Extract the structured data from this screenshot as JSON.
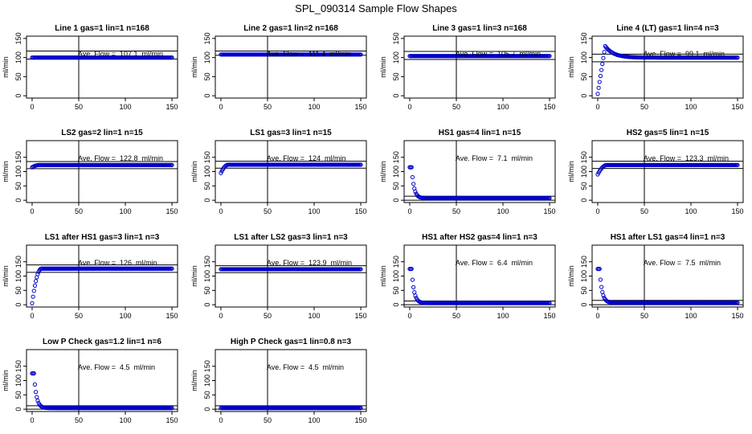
{
  "page": {
    "title": "SPL_090314  Sample Flow Shapes",
    "marker_color": "#0000cc",
    "axis_color": "#000000"
  },
  "chart_data": [
    {
      "type": "scatter",
      "title": "Line 1 gas=1 lin=1 n=168",
      "ylabel": "ml/min",
      "annotation": "Ave. Flow =  107.1  ml/min",
      "xlim": [
        0,
        150
      ],
      "ylim": [
        0,
        150
      ],
      "xticks": [
        0,
        50,
        100,
        150
      ],
      "yticks": [
        0,
        50,
        100,
        150
      ],
      "vline": 50,
      "hlines": [
        96,
        117
      ],
      "curve": {
        "kind": "flat",
        "start": 100,
        "peak": 100,
        "steady": 100,
        "x_peak": 3
      }
    },
    {
      "type": "scatter",
      "title": "Line 2 gas=1 lin=2 n=168",
      "ylabel": "ml/min",
      "annotation": "Ave. Flow =  111.4  ml/min",
      "xlim": [
        0,
        150
      ],
      "ylim": [
        0,
        150
      ],
      "xticks": [
        0,
        50,
        100,
        150
      ],
      "yticks": [
        0,
        50,
        100,
        150
      ],
      "vline": 50,
      "hlines": [
        106,
        117
      ],
      "curve": {
        "kind": "flat",
        "start": 108,
        "peak": 108,
        "steady": 108,
        "x_peak": 3
      }
    },
    {
      "type": "scatter",
      "title": "Line 3 gas=1 lin=3 n=168",
      "ylabel": "ml/min",
      "annotation": "Ave. Flow =  105.7  ml/min",
      "xlim": [
        0,
        150
      ],
      "ylim": [
        0,
        150
      ],
      "xticks": [
        0,
        50,
        100,
        150
      ],
      "yticks": [
        0,
        50,
        100,
        150
      ],
      "vline": 50,
      "hlines": [
        95,
        116
      ],
      "curve": {
        "kind": "flat",
        "start": 104,
        "peak": 104,
        "steady": 104,
        "x_peak": 3
      }
    },
    {
      "type": "scatter",
      "title": "Line 4 (LT) gas=1 lin=4 n=3",
      "ylabel": "ml/min",
      "annotation": "Ave. Flow =  99.1  ml/min",
      "xlim": [
        0,
        150
      ],
      "ylim": [
        0,
        150
      ],
      "xticks": [
        0,
        50,
        100,
        150
      ],
      "yticks": [
        0,
        50,
        100,
        150
      ],
      "vline": 50,
      "hlines": [
        89,
        109
      ],
      "curve": {
        "kind": "rise-overshoot",
        "start": 5,
        "peak": 130,
        "steady": 100,
        "x_peak": 8
      }
    },
    {
      "type": "scatter",
      "title": "LS2 gas=2 lin=1 n=15",
      "ylabel": "ml/min",
      "annotation": "Ave. Flow =  122.8  ml/min",
      "xlim": [
        0,
        150
      ],
      "ylim": [
        0,
        200
      ],
      "xticks": [
        0,
        50,
        100,
        150
      ],
      "yticks": [
        0,
        50,
        100,
        150
      ],
      "vline": 50,
      "hlines": [
        110,
        135
      ],
      "curve": {
        "kind": "rise",
        "start": 115,
        "peak": 123,
        "steady": 123,
        "x_peak": 8
      }
    },
    {
      "type": "scatter",
      "title": "LS1 gas=3 lin=1 n=15",
      "ylabel": "ml/min",
      "annotation": "Ave. Flow =  124  ml/min",
      "xlim": [
        0,
        150
      ],
      "ylim": [
        0,
        200
      ],
      "xticks": [
        0,
        50,
        100,
        150
      ],
      "yticks": [
        0,
        50,
        100,
        150
      ],
      "vline": 50,
      "hlines": [
        112,
        136
      ],
      "curve": {
        "kind": "rise",
        "start": 95,
        "peak": 124,
        "steady": 124,
        "x_peak": 8
      }
    },
    {
      "type": "scatter",
      "title": "HS1 gas=4 lin=1 n=15",
      "ylabel": "ml/min",
      "annotation": "Ave. Flow =  7.1  ml/min",
      "xlim": [
        0,
        150
      ],
      "ylim": [
        0,
        200
      ],
      "xticks": [
        0,
        50,
        100,
        150
      ],
      "yticks": [
        0,
        50,
        100,
        150
      ],
      "vline": 50,
      "hlines": [
        0,
        14
      ],
      "curve": {
        "kind": "decay",
        "start": 115,
        "peak": 115,
        "steady": 7,
        "x_peak": 2
      }
    },
    {
      "type": "scatter",
      "title": "HS2 gas=5 lin=1 n=15",
      "ylabel": "ml/min",
      "annotation": "Ave. Flow =  123.3  ml/min",
      "xlim": [
        0,
        150
      ],
      "ylim": [
        0,
        200
      ],
      "xticks": [
        0,
        50,
        100,
        150
      ],
      "yticks": [
        0,
        50,
        100,
        150
      ],
      "vline": 50,
      "hlines": [
        111,
        136
      ],
      "curve": {
        "kind": "rise",
        "start": 90,
        "peak": 123,
        "steady": 123,
        "x_peak": 10
      }
    },
    {
      "type": "scatter",
      "title": "LS1 after HS1 gas=3 lin=1 n=3",
      "ylabel": "ml/min",
      "annotation": "Ave. Flow =  126  ml/min",
      "xlim": [
        0,
        150
      ],
      "ylim": [
        0,
        200
      ],
      "xticks": [
        0,
        50,
        100,
        150
      ],
      "yticks": [
        0,
        50,
        100,
        150
      ],
      "vline": 50,
      "hlines": [
        113,
        139
      ],
      "curve": {
        "kind": "rise",
        "start": 5,
        "peak": 126,
        "steady": 126,
        "x_peak": 10
      }
    },
    {
      "type": "scatter",
      "title": "LS1 after LS2 gas=3 lin=1 n=3",
      "ylabel": "ml/min",
      "annotation": "Ave. Flow =  123.9  ml/min",
      "xlim": [
        0,
        150
      ],
      "ylim": [
        0,
        200
      ],
      "xticks": [
        0,
        50,
        100,
        150
      ],
      "yticks": [
        0,
        50,
        100,
        150
      ],
      "vline": 50,
      "hlines": [
        112,
        136
      ],
      "curve": {
        "kind": "flat",
        "start": 124,
        "peak": 124,
        "steady": 124,
        "x_peak": 3
      }
    },
    {
      "type": "scatter",
      "title": "HS1 after HS2 gas=4 lin=1 n=3",
      "ylabel": "ml/min",
      "annotation": "Ave. Flow =  6.4  ml/min",
      "xlim": [
        0,
        150
      ],
      "ylim": [
        0,
        200
      ],
      "xticks": [
        0,
        50,
        100,
        150
      ],
      "yticks": [
        0,
        50,
        100,
        150
      ],
      "vline": 50,
      "hlines": [
        0,
        13
      ],
      "curve": {
        "kind": "decay",
        "start": 125,
        "peak": 125,
        "steady": 6,
        "x_peak": 2
      }
    },
    {
      "type": "scatter",
      "title": "HS1 after LS1 gas=4 lin=1 n=3",
      "ylabel": "ml/min",
      "annotation": "Ave. Flow =  7.5  ml/min",
      "xlim": [
        0,
        150
      ],
      "ylim": [
        0,
        200
      ],
      "xticks": [
        0,
        50,
        100,
        150
      ],
      "yticks": [
        0,
        50,
        100,
        150
      ],
      "vline": 50,
      "hlines": [
        0,
        15
      ],
      "curve": {
        "kind": "decay",
        "start": 125,
        "peak": 125,
        "steady": 7,
        "x_peak": 2
      }
    },
    {
      "type": "scatter",
      "title": "Low P Check gas=1.2 lin=1 n=6",
      "ylabel": "ml/min",
      "annotation": "Ave. Flow =  4.5  ml/min",
      "xlim": [
        0,
        150
      ],
      "ylim": [
        0,
        200
      ],
      "xticks": [
        0,
        50,
        100,
        150
      ],
      "yticks": [
        0,
        50,
        100,
        150
      ],
      "vline": 50,
      "hlines": [
        0,
        12
      ],
      "curve": {
        "kind": "decay",
        "start": 125,
        "peak": 125,
        "steady": 4,
        "x_peak": 2
      }
    },
    {
      "type": "scatter",
      "title": "High P Check gas=1 lin=0.8 n=3",
      "ylabel": "ml/min",
      "annotation": "Ave. Flow =  4.5  ml/min",
      "xlim": [
        0,
        150
      ],
      "ylim": [
        0,
        200
      ],
      "xticks": [
        0,
        50,
        100,
        150
      ],
      "yticks": [
        0,
        50,
        100,
        150
      ],
      "vline": 50,
      "hlines": [
        0,
        12
      ],
      "curve": {
        "kind": "flat",
        "start": 4,
        "peak": 4,
        "steady": 4,
        "x_peak": 3
      }
    }
  ]
}
